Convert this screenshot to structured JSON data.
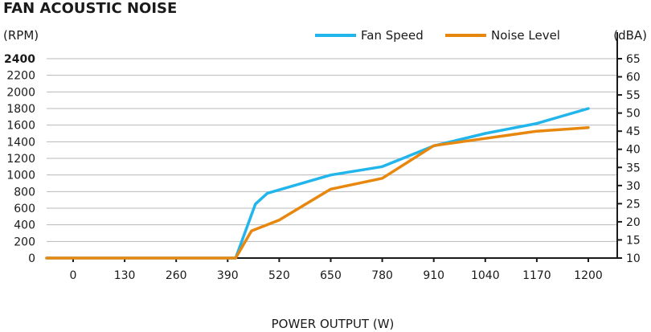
{
  "chart_data": {
    "type": "line",
    "title": "FAN ACOUSTIC NOISE",
    "xlabel": "POWER OUTPUT (W)",
    "ylabel_left": "(RPM)",
    "ylabel_right": "(dBA)",
    "x_ticks": [
      0,
      130,
      260,
      390,
      520,
      650,
      780,
      910,
      1040,
      1170,
      1200
    ],
    "y_left_ticks": [
      0,
      200,
      400,
      600,
      800,
      1000,
      1200,
      1400,
      1600,
      1800,
      2000,
      2200,
      2400
    ],
    "y_left_highlight": 2400,
    "y_right_ticks": [
      10,
      15,
      20,
      25,
      30,
      35,
      40,
      45,
      50,
      55,
      60,
      65
    ],
    "ylim_left": [
      0,
      2400
    ],
    "ylim_right": [
      10,
      65
    ],
    "grid": true,
    "legend_position": "top-right",
    "series": [
      {
        "name": "Fan Speed",
        "axis": "left",
        "color": "#22b5ec",
        "x": [
          0,
          130,
          260,
          390,
          410,
          460,
          490,
          650,
          780,
          910,
          1040,
          1170,
          1200
        ],
        "y": [
          0,
          0,
          0,
          0,
          0,
          650,
          780,
          1000,
          1100,
          1350,
          1500,
          1620,
          1800
        ]
      },
      {
        "name": "Noise Level",
        "axis": "right",
        "color": "#e8870e",
        "x": [
          0,
          130,
          260,
          390,
          410,
          450,
          520,
          650,
          780,
          910,
          1040,
          1170,
          1200
        ],
        "y": [
          10,
          10,
          10,
          10,
          10,
          17.5,
          20.5,
          29,
          32,
          41,
          43,
          45,
          46
        ]
      }
    ]
  }
}
